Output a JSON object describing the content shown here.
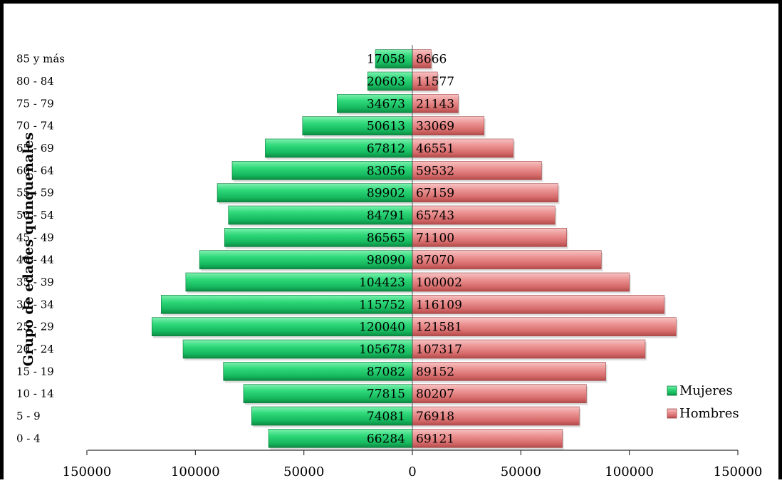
{
  "chart_data": {
    "type": "bar",
    "orientation": "horizontal",
    "ylabel": "Grupo de edades quinquenales",
    "categories": [
      "0 - 4",
      "5 - 9",
      "10 - 14",
      "15 - 19",
      "20 - 24",
      "25 - 29",
      "30 - 34",
      "35 - 39",
      "40 - 44",
      "45 - 49",
      "50 - 54",
      "55 - 59",
      "60 - 64",
      "65 - 69",
      "70 - 74",
      "75 - 79",
      "80 - 84",
      "85 y más"
    ],
    "series": [
      {
        "name": "Mujeres",
        "color": "#22c46a",
        "direction": "left",
        "values": [
          66284,
          74081,
          77815,
          87082,
          105678,
          120040,
          115752,
          104423,
          98090,
          86565,
          84791,
          89902,
          83056,
          67812,
          50613,
          34673,
          20603,
          17058
        ]
      },
      {
        "name": "Hombres",
        "color": "#e07a7a",
        "direction": "right",
        "values": [
          69121,
          76918,
          80207,
          89152,
          107317,
          121581,
          116109,
          100002,
          87070,
          71100,
          65743,
          67159,
          59532,
          46551,
          33069,
          21143,
          11577,
          8666
        ]
      }
    ],
    "xlim": [
      -150000,
      150000
    ],
    "xticks": [
      -150000,
      -100000,
      -50000,
      0,
      50000,
      100000,
      150000
    ],
    "xtick_labels": [
      "150000",
      "100000",
      "50000",
      "0",
      "50000",
      "100000",
      "150000"
    ],
    "legend": "bottom-right",
    "grid": false
  }
}
